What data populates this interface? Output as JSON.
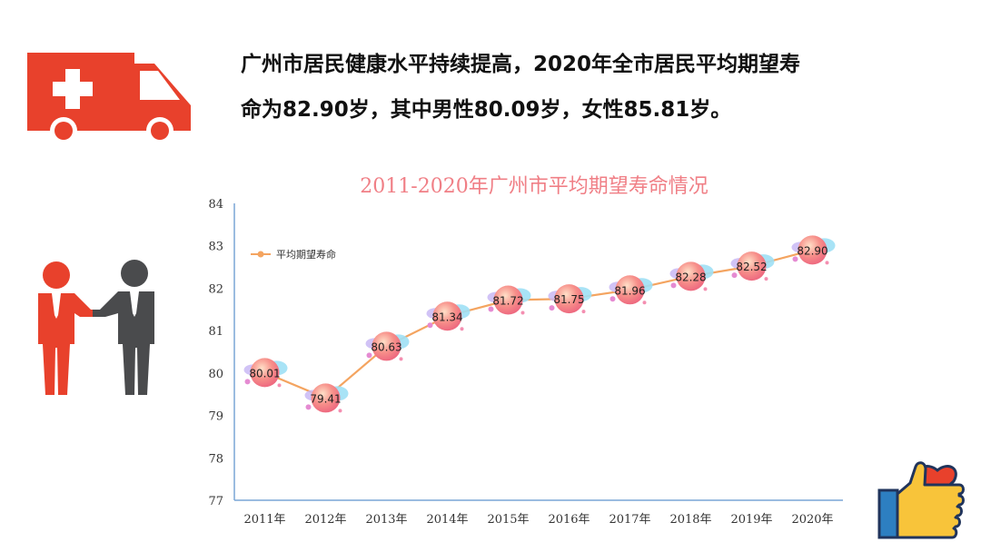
{
  "headline": {
    "line1": "广州市居民健康水平持续提高，2020年全市居民平均期望寿",
    "line2": "命为82.90岁，其中男性80.09岁，女性85.81岁。"
  },
  "icons": [
    "ambulance-icon",
    "handshake-icon",
    "thumbs-up-heart-icon"
  ],
  "colors": {
    "accent_red": "#e8412c",
    "dark_gray": "#4a4b4d",
    "line": "#f4a460",
    "title": "#f07f86"
  },
  "chart_data": {
    "type": "line",
    "title": "2011-2020年广州市平均期望寿命情况",
    "categories": [
      "2011年",
      "2012年",
      "2013年",
      "2014年",
      "2015年",
      "2016年",
      "2017年",
      "2018年",
      "2019年",
      "2020年"
    ],
    "series": [
      {
        "name": "平均期望寿命",
        "values": [
          80.01,
          79.41,
          80.63,
          81.34,
          81.72,
          81.75,
          81.96,
          82.28,
          82.52,
          82.9
        ]
      }
    ],
    "data_labels": [
      "80.01",
      "79.41",
      "80.63",
      "81.34",
      "81.72",
      "81.75",
      "81.96",
      "82.28",
      "82.52",
      "82.90"
    ],
    "y_ticks": [
      "77",
      "78",
      "79",
      "80",
      "81",
      "82",
      "83",
      "84"
    ],
    "ylim": [
      77,
      84
    ],
    "legend_position": "top-left",
    "grid": false
  }
}
